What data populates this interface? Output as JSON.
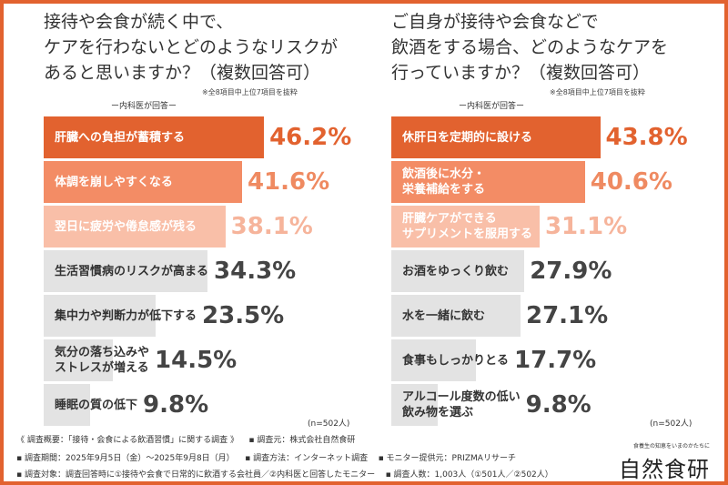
{
  "chart_data": [
    {
      "type": "bar",
      "orientation": "horizontal",
      "title": "接待や会食が続く中で、\nケアを行わないとどのようなリスクが\nあると思いますか？（複数回答可）",
      "note": "※全8項目中上位7項目を抜粋",
      "respondents": "ー内科医が回答ー",
      "sample": "(n=502人)",
      "categories": [
        "肝臓への負担が蓄積する",
        "体調を崩しやすくなる",
        "翌日に疲労や倦怠感が残る",
        "生活習慣病のリスクが高まる",
        "集中力や判断力が低下する",
        "気分の落ち込みや\nストレスが増える",
        "睡眠の質の低下"
      ],
      "values": [
        46.2,
        41.6,
        38.1,
        34.3,
        23.5,
        14.5,
        9.8
      ],
      "value_labels": [
        "46.2%",
        "41.6%",
        "38.1%",
        "34.3%",
        "23.5%",
        "14.5%",
        "9.8%"
      ]
    },
    {
      "type": "bar",
      "orientation": "horizontal",
      "title": "ご自身が接待や会食などで\n飲酒をする場合、どのようなケアを\n行っていますか？（複数回答可）",
      "note": "※全8項目中上位7項目を抜粋",
      "respondents": "ー内科医が回答ー",
      "sample": "(n=502人)",
      "categories": [
        "休肝日を定期的に設ける",
        "飲酒後に水分・\n栄養補給をする",
        "肝臓ケアができる\nサプリメントを服用する",
        "お酒をゆっくり飲む",
        "水を一緒に飲む",
        "食事もしっかりとる",
        "アルコール度数の低い\n飲み物を選ぶ"
      ],
      "values": [
        43.8,
        40.6,
        31.1,
        27.9,
        27.1,
        17.7,
        9.8
      ],
      "value_labels": [
        "43.8%",
        "40.6%",
        "31.1%",
        "27.9%",
        "27.1%",
        "17.7%",
        "9.8%"
      ]
    }
  ],
  "colors": {
    "bar": [
      "#e2622f",
      "#f38c65",
      "#f9bfa8",
      "#e3e3e3",
      "#e3e3e3",
      "#e3e3e3",
      "#e3e3e3"
    ],
    "value": [
      "#e2622f",
      "#ef8a61",
      "#f6b49b",
      "#444444",
      "#444444",
      "#444444",
      "#444444"
    ],
    "label": [
      "#ffffff",
      "#ffffff",
      "#ffffff",
      "#333333",
      "#333333",
      "#333333",
      "#333333"
    ],
    "frame": "#e2622f"
  },
  "footer": {
    "line1a": "《 調査概要：「接待・会食による飲酒習慣」に関する調査 》",
    "line1b": "▪ 調査元：株式会社自然食研",
    "line2a": "▪ 調査期間：2025年9月5日（金）～2025年9月8日（月）",
    "line2b": "▪ 調査方法：インターネット調査",
    "line2c": "▪ モニター提供元：PRIZMAリサーチ",
    "line3a": "▪ 調査対象：調査回答時に①接待や会食で日常的に飲酒する会社員／②内科医と回答したモニター",
    "line3b": "▪ 調査人数：1,003人（①501人／②502人）"
  },
  "brand": {
    "tagline": "食養生の知恵をいまのかたちに",
    "name": "自然食研"
  }
}
